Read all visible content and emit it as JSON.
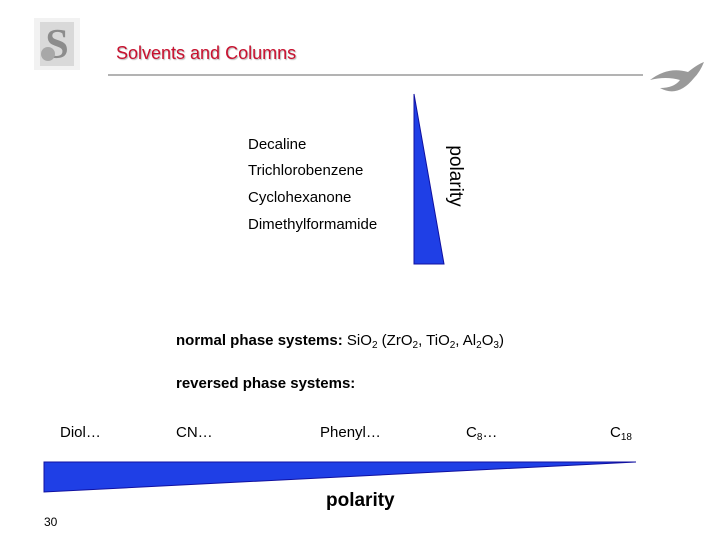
{
  "header": {
    "title": "Solvents and Columns",
    "logo_icon": "university-s-crest-icon",
    "decor_icon": "swoosh-arrow-icon"
  },
  "solvents": {
    "items": [
      "Decaline",
      "Trichlorobenzene",
      "Cyclohexanone",
      "Dimethylformamide"
    ],
    "axis_label": "polarity"
  },
  "normal_phase": {
    "label": "normal phase systems:",
    "si": "Si",
    "o2": "O",
    "two": "2",
    "zr": " (ZrO",
    "zr2": "2",
    "ti": ", TiO",
    "ti2": "2",
    "al": ", Al",
    "al2": "2",
    "o3": "O",
    "three": "3",
    "close": ")"
  },
  "reversed_phase": {
    "label": "reversed phase systems:",
    "diol": "Diol…",
    "cn": "CN…",
    "phenyl": "Phenyl…",
    "c8": "C",
    "c8_sub": "8",
    "c8_tail": "…",
    "c18": "C",
    "c18_sub": "18",
    "axis_label": "polarity"
  },
  "footer": {
    "page_number": "30"
  },
  "colors": {
    "wedge": "#1f3fe6",
    "title": "#c8102e",
    "rule": "#b3b3b3"
  }
}
